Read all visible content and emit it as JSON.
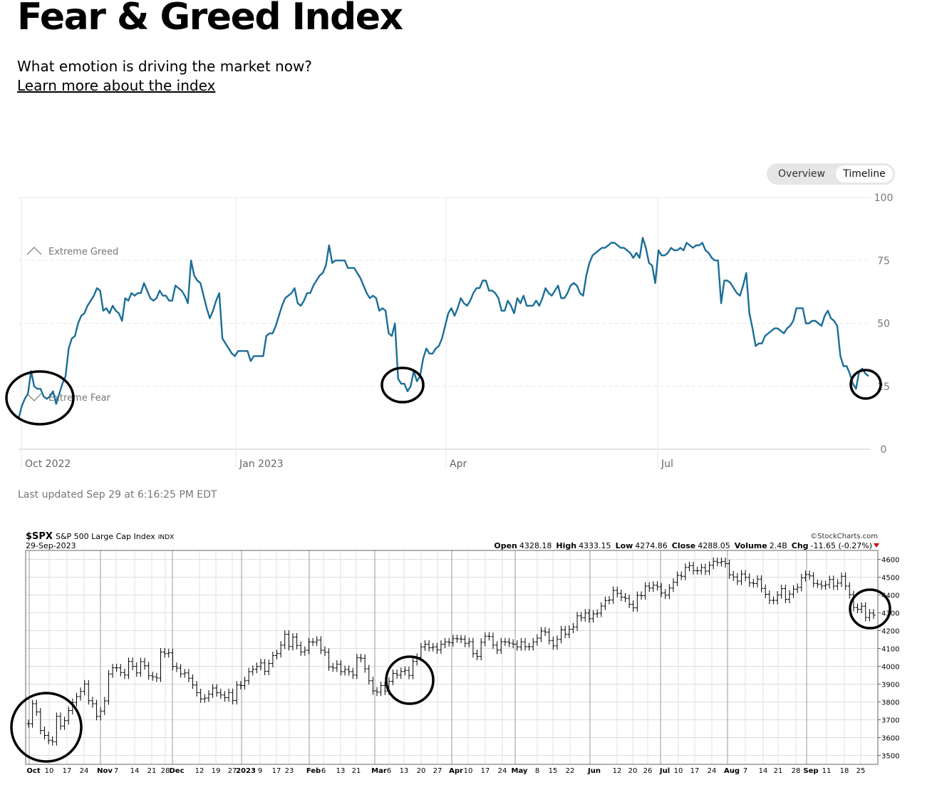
{
  "header": {
    "title": "Fear & Greed Index",
    "subtitle": "What emotion is driving the market now?",
    "learn_link": "Learn more about the index"
  },
  "toggle": {
    "overview_label": "Overview",
    "timeline_label": "Timeline",
    "selected": "Timeline"
  },
  "last_updated": "Last updated Sep 29 at 6:16:25 PM EDT",
  "colors": {
    "line": "#1a6e98",
    "grid": "#e6e6e6",
    "annotation": "#000000"
  },
  "chart_data": [
    {
      "type": "line",
      "ylim": [
        0,
        100
      ],
      "yticks": [
        0,
        25,
        50,
        75,
        100
      ],
      "x_tick_labels": [
        "Oct 2022",
        "Jan 2023",
        "Apr",
        "Jul"
      ],
      "zones": [
        {
          "label": "Extreme Greed",
          "icon": "chevron-up-icon"
        },
        {
          "label": "Extreme Fear",
          "icon": "chevron-down-icon"
        }
      ],
      "grid": true,
      "series": [
        {
          "values": [
            12,
            17,
            20,
            22,
            31,
            25,
            24,
            24,
            21,
            20,
            21,
            23,
            18,
            22,
            26,
            29,
            40,
            44,
            45,
            50,
            53,
            54,
            57,
            59,
            61,
            64,
            63,
            55,
            56,
            54,
            57,
            55,
            54,
            51,
            60,
            59,
            62,
            61,
            62,
            62,
            66,
            63,
            60,
            59,
            60,
            63,
            61,
            61,
            59,
            59,
            65,
            64,
            63,
            61,
            58,
            75,
            69,
            67,
            66,
            61,
            56,
            52,
            55,
            59,
            62,
            44,
            42,
            40,
            38,
            37,
            39,
            39,
            39,
            39,
            35,
            37,
            37,
            37,
            37,
            45,
            46,
            46,
            49,
            53,
            57,
            60,
            61,
            62,
            64,
            58,
            57,
            59,
            62,
            62,
            65,
            67,
            69,
            70,
            73,
            81,
            74,
            75,
            75,
            75,
            75,
            72,
            72,
            72,
            70,
            68,
            65,
            62,
            60,
            61,
            60,
            55,
            56,
            55,
            46,
            45,
            50,
            28,
            26,
            26,
            23,
            25,
            31,
            27,
            29,
            36,
            40,
            38,
            38,
            40,
            41,
            44,
            49,
            54,
            56,
            53,
            56,
            60,
            58,
            57,
            59,
            62,
            64,
            64,
            67,
            67,
            63,
            63,
            62,
            60,
            55,
            55,
            59,
            57,
            54,
            60,
            58,
            61,
            57,
            57,
            57,
            59,
            57,
            60,
            64,
            62,
            61,
            63,
            65,
            60,
            60,
            62,
            65,
            66,
            65,
            62,
            61,
            69,
            74,
            77,
            78,
            79,
            80,
            80,
            81,
            82,
            82,
            81,
            80,
            80,
            79,
            78,
            76,
            78,
            76,
            84,
            80,
            74,
            73,
            66,
            79,
            77,
            77,
            78,
            80,
            79,
            79,
            80,
            79,
            82,
            81,
            80,
            81,
            81,
            82,
            79,
            78,
            76,
            75,
            75,
            58,
            67,
            67,
            66,
            64,
            62,
            61,
            65,
            70,
            54,
            48,
            41,
            42,
            42,
            45,
            46,
            47,
            48,
            48,
            47,
            46,
            48,
            49,
            51,
            56,
            56,
            56,
            50,
            50,
            51,
            51,
            50,
            49,
            53,
            55,
            52,
            51,
            49,
            37,
            33,
            33,
            30,
            26,
            24,
            31,
            32,
            30,
            29
          ]
        }
      ]
    },
    {
      "type": "bar",
      "title": "$SPX",
      "subtitle": "S&P 500 Large Cap Index",
      "exchange": "INDX",
      "date": "29-Sep-2023",
      "watermark": "©StockCharts.com",
      "stats": [
        {
          "label": "Open",
          "value": "4328.18"
        },
        {
          "label": "High",
          "value": "4333.15"
        },
        {
          "label": "Low",
          "value": "4274.86"
        },
        {
          "label": "Close",
          "value": "4288.05"
        },
        {
          "label": "Volume",
          "value": "2.4B"
        },
        {
          "label": "Chg",
          "value": "-11.65 (-0.27%)"
        }
      ],
      "ylim": [
        3450,
        4650
      ],
      "yticks": [
        3500,
        3600,
        3700,
        3800,
        3900,
        4000,
        4100,
        4200,
        4300,
        4400,
        4500,
        4600
      ],
      "x_tick_labels": [
        "Oct",
        "10",
        "17",
        "24",
        "Nov",
        "7",
        "14",
        "21",
        "28",
        "Dec",
        "12",
        "19",
        "27",
        "2023",
        "9",
        "17",
        "23",
        "Feb",
        "6",
        "13",
        "21",
        "Mar",
        "6",
        "13",
        "20",
        "27",
        "Apr",
        "10",
        "17",
        "24",
        "May",
        "8",
        "15",
        "22",
        "Jun",
        "12",
        "20",
        "26",
        "Jul",
        "10",
        "17",
        "24",
        "Aug",
        "7",
        "14",
        "21",
        "28",
        "Sep",
        "11",
        "18",
        "25"
      ],
      "grid": true,
      "close": [
        3678,
        3790,
        3744,
        3640,
        3612,
        3585,
        3577,
        3719,
        3665,
        3695,
        3752,
        3797,
        3830,
        3859,
        3901,
        3807,
        3790,
        3719,
        3749,
        3806,
        3957,
        3992,
        3991,
        3965,
        3951,
        4027,
        4000,
        3963,
        4026,
        4003,
        3947,
        3941,
        3934,
        4080,
        4071,
        4076,
        3999,
        3990,
        3958,
        3963,
        3933,
        3895,
        3852,
        3817,
        3822,
        3844,
        3878,
        3852,
        3839,
        3824,
        3853,
        3808,
        3895,
        3892,
        3919,
        3970,
        3983,
        3999,
        4019,
        3972,
        4016,
        4060,
        4071,
        4119,
        4180,
        4111,
        4164,
        4117,
        4081,
        4090,
        4137,
        4136,
        4147,
        4090,
        4079,
        3997,
        3991,
        4012,
        3970,
        3982,
        3970,
        3951,
        4048,
        4045,
        3986,
        3919,
        3862,
        3855,
        3892,
        3861,
        3916,
        3960,
        3951,
        3971,
        3977,
        3949,
        4027,
        4050,
        4109,
        4124,
        4105,
        4109,
        4092,
        4124,
        4137,
        4133,
        4155,
        4154,
        4152,
        4129,
        4138,
        4071,
        4056,
        4135,
        4169,
        4167,
        4119,
        4091,
        4138,
        4137,
        4130,
        4124,
        4109,
        4137,
        4110,
        4110,
        4137,
        4158,
        4198,
        4192,
        4145,
        4115,
        4151,
        4205,
        4180,
        4208,
        4221,
        4283,
        4273,
        4299,
        4267,
        4294,
        4298,
        4338,
        4369,
        4372,
        4426,
        4409,
        4388,
        4381,
        4348,
        4328,
        4398,
        4396,
        4450,
        4439,
        4455,
        4446,
        4411,
        4399,
        4439,
        4472,
        4510,
        4505,
        4555,
        4565,
        4537,
        4536,
        4554,
        4534,
        4567,
        4589,
        4582,
        4588,
        4576,
        4513,
        4501,
        4478,
        4518,
        4499,
        4468,
        4464,
        4489,
        4437,
        4404,
        4370,
        4370,
        4400,
        4436,
        4376,
        4405,
        4433,
        4443,
        4497,
        4515,
        4507,
        4465,
        4461,
        4451,
        4458,
        4487,
        4450,
        4467,
        4505,
        4450,
        4402,
        4330,
        4320,
        4337,
        4274,
        4299,
        4288
      ]
    }
  ]
}
